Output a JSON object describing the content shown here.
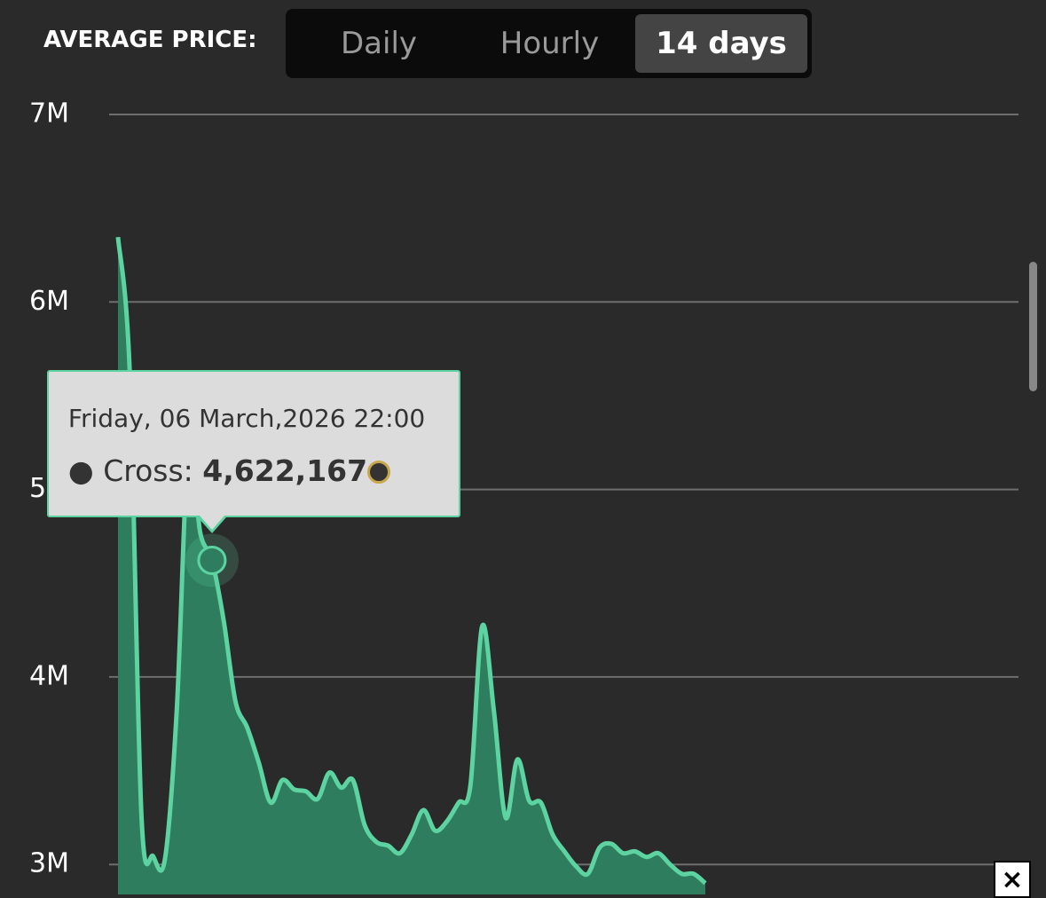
{
  "header": {
    "label": "AVERAGE PRICE:",
    "tabs": [
      {
        "label": "Daily"
      },
      {
        "label": "Hourly"
      },
      {
        "label": "14 days",
        "selected": true
      }
    ]
  },
  "chart_data": {
    "type": "area",
    "series": [
      {
        "name": "Cross",
        "color": "#5dd3a2",
        "fill": "#2e7d5e",
        "values": [
          6346000,
          5626000,
          3256000,
          3043000,
          3030000,
          3820000,
          5220000,
          4770000,
          4622167,
          4300000,
          3870000,
          3730000,
          3540000,
          3330000,
          3450000,
          3400000,
          3390000,
          3350000,
          3490000,
          3410000,
          3450000,
          3210000,
          3120000,
          3100000,
          3060000,
          3160000,
          3290000,
          3180000,
          3230000,
          3330000,
          3420000,
          4270000,
          3820000,
          3250000,
          3560000,
          3340000,
          3330000,
          3160000,
          3070000,
          2990000,
          2950000,
          3090000,
          3110000,
          3060000,
          3070000,
          3040000,
          3060000,
          3000000,
          2950000,
          2950000,
          2900000
        ]
      }
    ],
    "ylim": [
      2840000,
      7090000
    ],
    "yticks": [
      {
        "value": 3000000,
        "label": "3M"
      },
      {
        "value": 4000000,
        "label": "4M"
      },
      {
        "value": 5000000,
        "label": "5M"
      },
      {
        "value": 6000000,
        "label": "6M"
      },
      {
        "value": 7000000,
        "label": "7M"
      }
    ],
    "grid": true,
    "tooltip": {
      "date": "Friday, 06 March,2026 22:00",
      "series_label": "Cross:",
      "value": 4622167,
      "value_label": "4,622,167"
    }
  },
  "close_button": "×"
}
